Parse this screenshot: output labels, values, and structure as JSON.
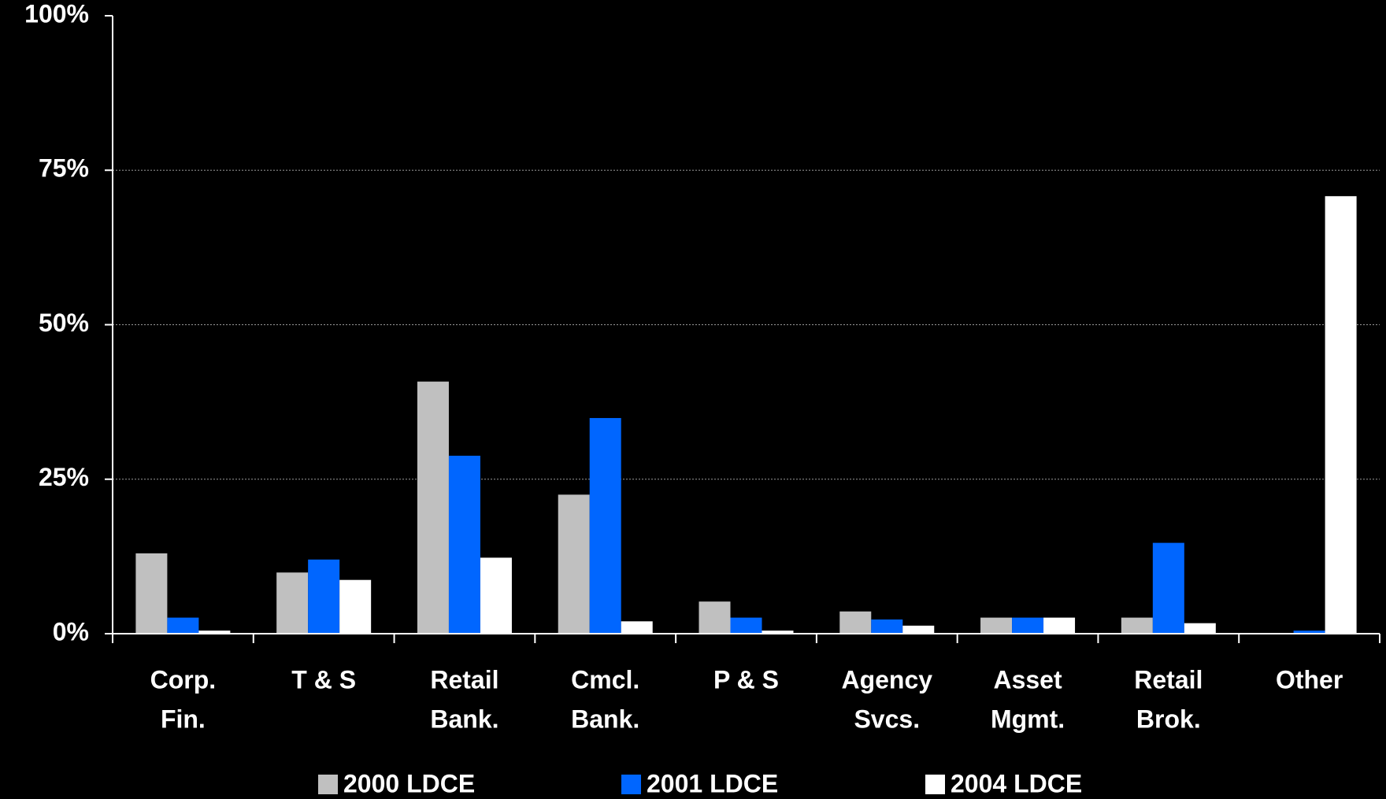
{
  "chart_data": {
    "type": "bar",
    "categories": [
      [
        "Corp.",
        "Fin."
      ],
      [
        "T & S"
      ],
      [
        "Retail",
        "Bank."
      ],
      [
        "Cmcl.",
        "Bank."
      ],
      [
        "P & S"
      ],
      [
        "Agency",
        "Svcs."
      ],
      [
        "Asset",
        "Mgmt."
      ],
      [
        "Retail",
        "Brok."
      ],
      [
        "Other"
      ]
    ],
    "series": [
      {
        "name": "2000 LDCE",
        "color": "#c0c0c0",
        "values": [
          13.0,
          9.9,
          40.8,
          22.5,
          5.2,
          3.6,
          2.6,
          2.6,
          0
        ]
      },
      {
        "name": "2001 LDCE",
        "color": "#0066ff",
        "values": [
          2.6,
          12.0,
          28.8,
          34.9,
          2.6,
          2.3,
          2.6,
          14.7,
          0.5
        ]
      },
      {
        "name": "2004 LDCE",
        "color": "#ffffff",
        "values": [
          0.5,
          8.7,
          12.3,
          2.0,
          0.5,
          1.3,
          2.6,
          1.7,
          70.8
        ]
      }
    ],
    "ylim": [
      0,
      100
    ],
    "yticks": [
      {
        "value": 0,
        "label": "0%"
      },
      {
        "value": 25,
        "label": "25%"
      },
      {
        "value": 50,
        "label": "50%"
      },
      {
        "value": 75,
        "label": "75%"
      },
      {
        "value": 100,
        "label": "100%"
      }
    ],
    "grid": true
  }
}
